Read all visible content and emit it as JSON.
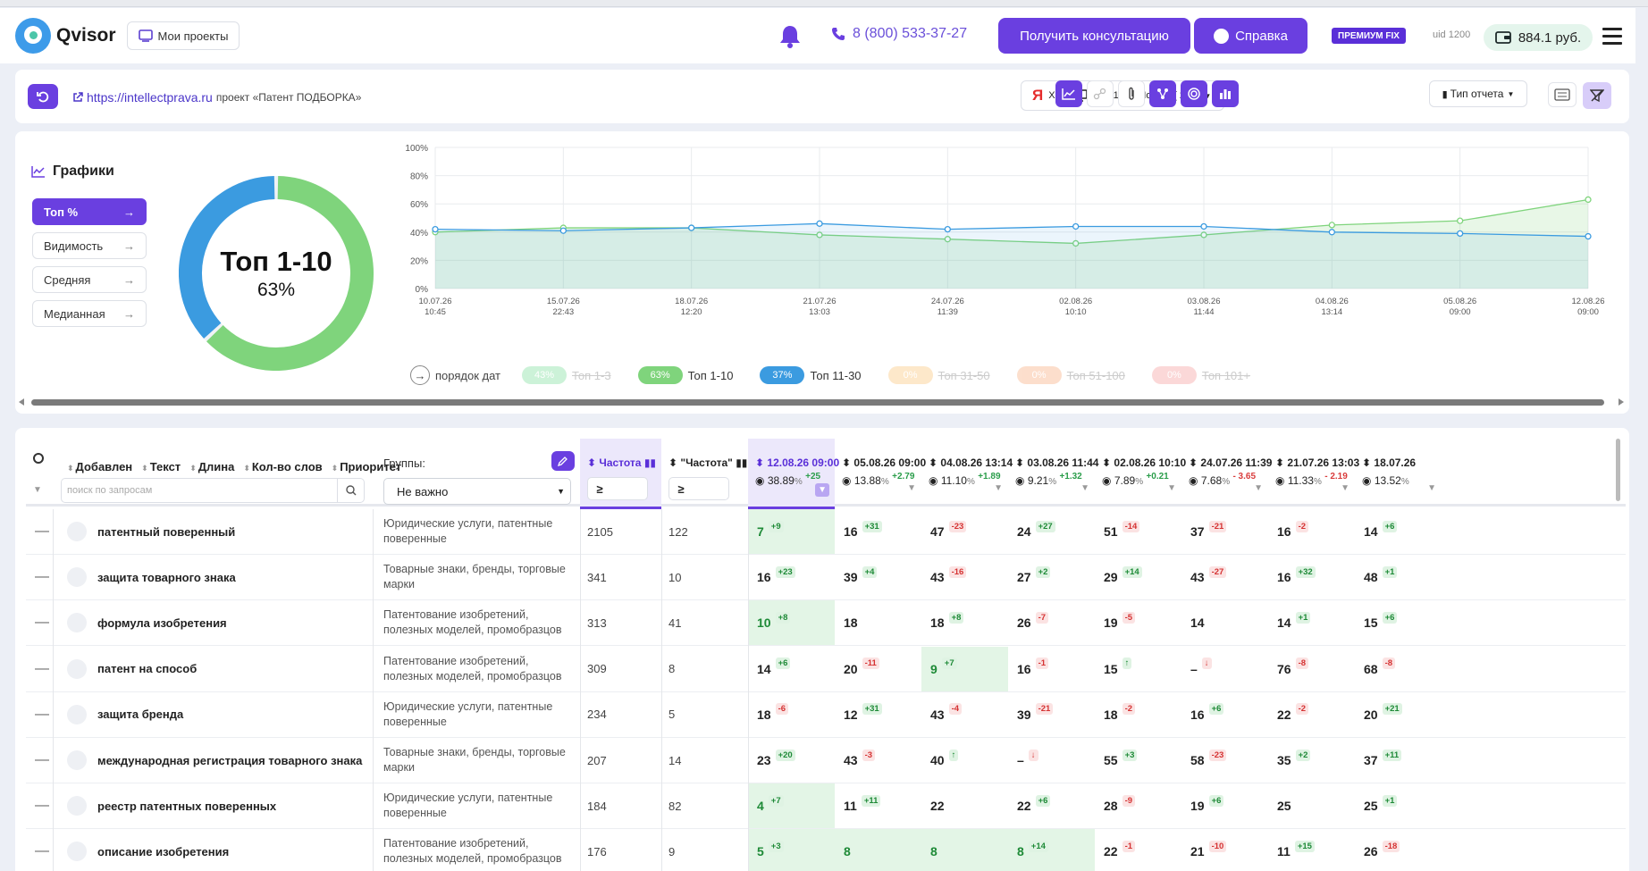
{
  "header": {
    "logo": "Qvisor",
    "projects_btn": "Мои проекты",
    "phone": "8 (800) 533-37-27",
    "consult_btn": "Получить консультацию",
    "help_btn": "Справка",
    "plan_badge": "ПРЕМИУМ FIX",
    "uid": "uid 1200",
    "balance": "884.1 руб."
  },
  "project": {
    "url": "https://intellectprava.ru",
    "name": "проект «Патент ПОДБОРКА»",
    "engine_xml": "XML",
    "engine_region": "ТОП 100 / Москва [ 213 ]",
    "report_type": "Тип отчета"
  },
  "graphs": {
    "title": "Графики",
    "metrics": [
      "Топ %",
      "Видимость",
      "Средняя",
      "Медианная"
    ],
    "donut_title": "Топ 1-10",
    "donut_value": "63%",
    "order_label": "порядок дат",
    "legend": [
      {
        "pct": "43%",
        "label": "Топ 1-3",
        "color": "#c4f0d2",
        "disabled": true
      },
      {
        "pct": "63%",
        "label": "Топ 1-10",
        "color": "#7fd47c",
        "disabled": false
      },
      {
        "pct": "37%",
        "label": "Топ 11-30",
        "color": "#3b9be0",
        "disabled": false
      },
      {
        "pct": "0%",
        "label": "Топ 31-50",
        "color": "#fde4c1",
        "disabled": true
      },
      {
        "pct": "0%",
        "label": "Топ 51-100",
        "color": "#fcd9c4",
        "disabled": true
      },
      {
        "pct": "0%",
        "label": "Топ 101+",
        "color": "#fbd2d2",
        "disabled": true
      }
    ]
  },
  "chart_data": {
    "type": "line",
    "x": [
      "10.07.26 10:45",
      "15.07.26 22:43",
      "18.07.26 12:20",
      "21.07.26 13:03",
      "24.07.26 11:39",
      "02.08.26 10:10",
      "03.08.26 11:44",
      "04.08.26 13:14",
      "05.08.26 09:00",
      "12.08.26 09:00"
    ],
    "x_date": [
      "10.07.26",
      "15.07.26",
      "18.07.26",
      "21.07.26",
      "24.07.26",
      "02.08.26",
      "03.08.26",
      "04.08.26",
      "05.08.26",
      "12.08.26"
    ],
    "x_time": [
      "10:45",
      "22:43",
      "12:20",
      "13:03",
      "11:39",
      "10:10",
      "11:44",
      "13:14",
      "09:00",
      "09:00"
    ],
    "series": [
      {
        "name": "Топ 1-10",
        "color": "#7fd47c",
        "values": [
          40,
          43,
          43,
          38,
          35,
          32,
          38,
          45,
          48,
          63
        ]
      },
      {
        "name": "Топ 11-30",
        "color": "#3b9be0",
        "values": [
          42,
          41,
          43,
          46,
          42,
          44,
          44,
          40,
          39,
          37
        ]
      }
    ],
    "ylim": [
      0,
      100
    ],
    "yticks": [
      "0%",
      "20%",
      "40%",
      "60%",
      "80%",
      "100%"
    ],
    "grid": true
  },
  "table": {
    "h_added": "Добавлен",
    "h_text": "Текст",
    "h_len": "Длина",
    "h_words": "Кол-во слов",
    "h_priority": "Приоритет",
    "search_placeholder": "поиск по запросам",
    "groups_label": "Группы:",
    "groups_value": "Не важно",
    "freq1": "Частота",
    "freq2": "\"Частота\"",
    "dates": [
      {
        "date": "12.08.26 09:00",
        "vis": "38.89",
        "delta": "+25",
        "neg": false
      },
      {
        "date": "05.08.26 09:00",
        "vis": "13.88",
        "delta": "+2.79",
        "neg": false
      },
      {
        "date": "04.08.26 13:14",
        "vis": "11.10",
        "delta": "+1.89",
        "neg": false
      },
      {
        "date": "03.08.26 11:44",
        "vis": "9.21",
        "delta": "+1.32",
        "neg": false
      },
      {
        "date": "02.08.26 10:10",
        "vis": "7.89",
        "delta": "+0.21",
        "neg": false
      },
      {
        "date": "24.07.26 11:39",
        "vis": "7.68",
        "delta": "- 3.65",
        "neg": true
      },
      {
        "date": "21.07.26 13:03",
        "vis": "11.33",
        "delta": "- 2.19",
        "neg": true
      },
      {
        "date": "18.07.26",
        "vis": "13.52",
        "delta": "",
        "neg": false
      }
    ],
    "rows": [
      {
        "kw": "патентный поверенный",
        "grp": "Юридические услуги, патентные поверенные",
        "f1": "2105",
        "f2": "122",
        "pos": [
          [
            "7",
            "+9",
            1
          ],
          [
            "16",
            "+31",
            0
          ],
          [
            "47",
            "-23",
            0
          ],
          [
            "24",
            "+27",
            0
          ],
          [
            "51",
            "-14",
            0
          ],
          [
            "37",
            "-21",
            0
          ],
          [
            "16",
            "-2",
            0
          ],
          [
            "14",
            "+6",
            0
          ]
        ]
      },
      {
        "kw": "защита товарного знака",
        "grp": "Товарные знаки, бренды, торговые марки",
        "f1": "341",
        "f2": "10",
        "pos": [
          [
            "16",
            "+23",
            0
          ],
          [
            "39",
            "+4",
            0
          ],
          [
            "43",
            "-16",
            0
          ],
          [
            "27",
            "+2",
            0
          ],
          [
            "29",
            "+14",
            0
          ],
          [
            "43",
            "-27",
            0
          ],
          [
            "16",
            "+32",
            0
          ],
          [
            "48",
            "+1",
            0
          ]
        ]
      },
      {
        "kw": "формула изобретения",
        "grp": "Патентование изобретений, полезных моделей, промобразцов",
        "f1": "313",
        "f2": "41",
        "pos": [
          [
            "10",
            "+8",
            1
          ],
          [
            "18",
            "",
            0
          ],
          [
            "18",
            "+8",
            0
          ],
          [
            "26",
            "-7",
            0
          ],
          [
            "19",
            "-5",
            0
          ],
          [
            "14",
            "",
            0
          ],
          [
            "14",
            "+1",
            0
          ],
          [
            "15",
            "+6",
            0
          ]
        ]
      },
      {
        "kw": "патент на способ",
        "grp": "Патентование изобретений, полезных моделей, промобразцов",
        "f1": "309",
        "f2": "8",
        "pos": [
          [
            "14",
            "+6",
            0
          ],
          [
            "20",
            "-11",
            0
          ],
          [
            "9",
            "+7",
            1
          ],
          [
            "16",
            "-1",
            0
          ],
          [
            "15",
            "↑",
            0
          ],
          [
            "–",
            "↓",
            0
          ],
          [
            "76",
            "-8",
            0
          ],
          [
            "68",
            "-8",
            0
          ]
        ]
      },
      {
        "kw": "защита бренда",
        "grp": "Юридические услуги, патентные поверенные",
        "f1": "234",
        "f2": "5",
        "pos": [
          [
            "18",
            "-6",
            0
          ],
          [
            "12",
            "+31",
            0
          ],
          [
            "43",
            "-4",
            0
          ],
          [
            "39",
            "-21",
            0
          ],
          [
            "18",
            "-2",
            0
          ],
          [
            "16",
            "+6",
            0
          ],
          [
            "22",
            "-2",
            0
          ],
          [
            "20",
            "+21",
            0
          ]
        ]
      },
      {
        "kw": "международная регистрация товарного знака",
        "grp": "Товарные знаки, бренды, торговые марки",
        "f1": "207",
        "f2": "14",
        "pos": [
          [
            "23",
            "+20",
            0
          ],
          [
            "43",
            "-3",
            0
          ],
          [
            "40",
            "↑",
            0
          ],
          [
            "–",
            "↓",
            0
          ],
          [
            "55",
            "+3",
            0
          ],
          [
            "58",
            "-23",
            0
          ],
          [
            "35",
            "+2",
            0
          ],
          [
            "37",
            "+11",
            0
          ]
        ]
      },
      {
        "kw": "реестр патентных поверенных",
        "grp": "Юридические услуги, патентные поверенные",
        "f1": "184",
        "f2": "82",
        "pos": [
          [
            "4",
            "+7",
            1
          ],
          [
            "11",
            "+11",
            0
          ],
          [
            "22",
            "",
            0
          ],
          [
            "22",
            "+6",
            0
          ],
          [
            "28",
            "-9",
            0
          ],
          [
            "19",
            "+6",
            0
          ],
          [
            "25",
            "",
            0
          ],
          [
            "25",
            "+1",
            0
          ]
        ]
      },
      {
        "kw": "описание изобретения",
        "grp": "Патентование изобретений, полезных моделей, промобразцов",
        "f1": "176",
        "f2": "9",
        "pos": [
          [
            "5",
            "+3",
            1
          ],
          [
            "8",
            "",
            1
          ],
          [
            "8",
            "",
            1
          ],
          [
            "8",
            "+14",
            1
          ],
          [
            "22",
            "-1",
            0
          ],
          [
            "21",
            "-10",
            0
          ],
          [
            "11",
            "+15",
            0
          ],
          [
            "26",
            "-18",
            0
          ]
        ]
      }
    ]
  }
}
